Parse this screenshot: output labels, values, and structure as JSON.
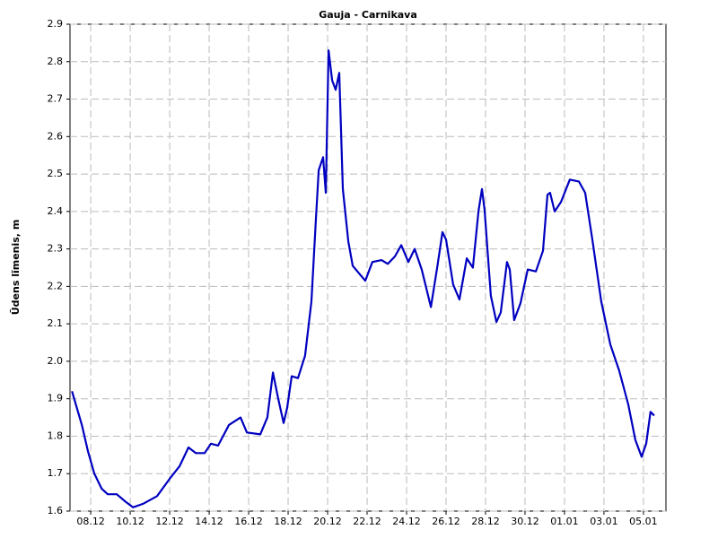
{
  "chart_data": {
    "type": "line",
    "title": "Gauja - Carnikava",
    "ylabel": "Ūdens līmenis, m",
    "xlim": [
      6.95,
      37.14
    ],
    "ylim": [
      1.6,
      2.9
    ],
    "xticks": [
      {
        "value": 8,
        "label": "08.12"
      },
      {
        "value": 10,
        "label": "10.12"
      },
      {
        "value": 12,
        "label": "12.12"
      },
      {
        "value": 14,
        "label": "14.12"
      },
      {
        "value": 16,
        "label": "16.12"
      },
      {
        "value": 18,
        "label": "18.12"
      },
      {
        "value": 20,
        "label": "20.12"
      },
      {
        "value": 22,
        "label": "22.12"
      },
      {
        "value": 24,
        "label": "24.12"
      },
      {
        "value": 26,
        "label": "26.12"
      },
      {
        "value": 28,
        "label": "28.12"
      },
      {
        "value": 30,
        "label": "30.12"
      },
      {
        "value": 32,
        "label": "01.01"
      },
      {
        "value": 34,
        "label": "03.01"
      },
      {
        "value": 36,
        "label": "05.01"
      }
    ],
    "yticks": [
      1.6,
      1.7,
      1.8,
      1.9,
      {
        "value": 2,
        "label": "2.0"
      },
      2.1,
      2.2,
      2.3,
      2.4,
      2.5,
      2.6,
      2.7,
      2.8,
      2.9
    ],
    "grid": true,
    "color": "#0000c0",
    "x": [
      7.05,
      7.55,
      7.86,
      8.18,
      8.55,
      8.86,
      9.32,
      9.77,
      10.14,
      10.68,
      11.36,
      12.05,
      12.5,
      12.95,
      13.32,
      13.77,
      14.09,
      14.45,
      15.0,
      15.59,
      15.91,
      16.59,
      16.95,
      17.23,
      17.5,
      17.77,
      17.95,
      18.18,
      18.5,
      18.86,
      19.18,
      19.41,
      19.55,
      19.77,
      19.91,
      20.05,
      20.23,
      20.41,
      20.59,
      20.77,
      21.05,
      21.27,
      21.59,
      21.91,
      22.27,
      22.73,
      23.05,
      23.41,
      23.73,
      24.09,
      24.41,
      24.77,
      25.23,
      25.55,
      25.82,
      26.0,
      26.36,
      26.68,
      27.05,
      27.36,
      27.64,
      27.82,
      27.95,
      28.27,
      28.55,
      28.77,
      29.09,
      29.23,
      29.45,
      29.77,
      30.14,
      30.55,
      30.91,
      31.14,
      31.27,
      31.5,
      31.82,
      32.27,
      32.73,
      33.05,
      33.41,
      33.86,
      34.32,
      34.77,
      35.23,
      35.59,
      35.91,
      36.14,
      36.36,
      36.55
    ],
    "values": [
      1.92,
      1.83,
      1.76,
      1.7,
      1.66,
      1.645,
      1.645,
      1.625,
      1.61,
      1.62,
      1.64,
      1.69,
      1.72,
      1.77,
      1.755,
      1.755,
      1.78,
      1.775,
      1.83,
      1.85,
      1.81,
      1.805,
      1.85,
      1.97,
      1.9,
      1.835,
      1.875,
      1.96,
      1.955,
      2.015,
      2.16,
      2.38,
      2.51,
      2.545,
      2.45,
      2.83,
      2.75,
      2.725,
      2.77,
      2.46,
      2.32,
      2.255,
      2.235,
      2.215,
      2.265,
      2.27,
      2.26,
      2.28,
      2.31,
      2.265,
      2.3,
      2.245,
      2.145,
      2.25,
      2.345,
      2.325,
      2.205,
      2.165,
      2.275,
      2.25,
      2.4,
      2.46,
      2.405,
      2.175,
      2.105,
      2.13,
      2.265,
      2.245,
      2.11,
      2.155,
      2.245,
      2.24,
      2.295,
      2.445,
      2.45,
      2.4,
      2.425,
      2.485,
      2.48,
      2.45,
      2.325,
      2.16,
      2.045,
      1.975,
      1.885,
      1.79,
      1.745,
      1.78,
      1.865,
      1.855
    ]
  }
}
